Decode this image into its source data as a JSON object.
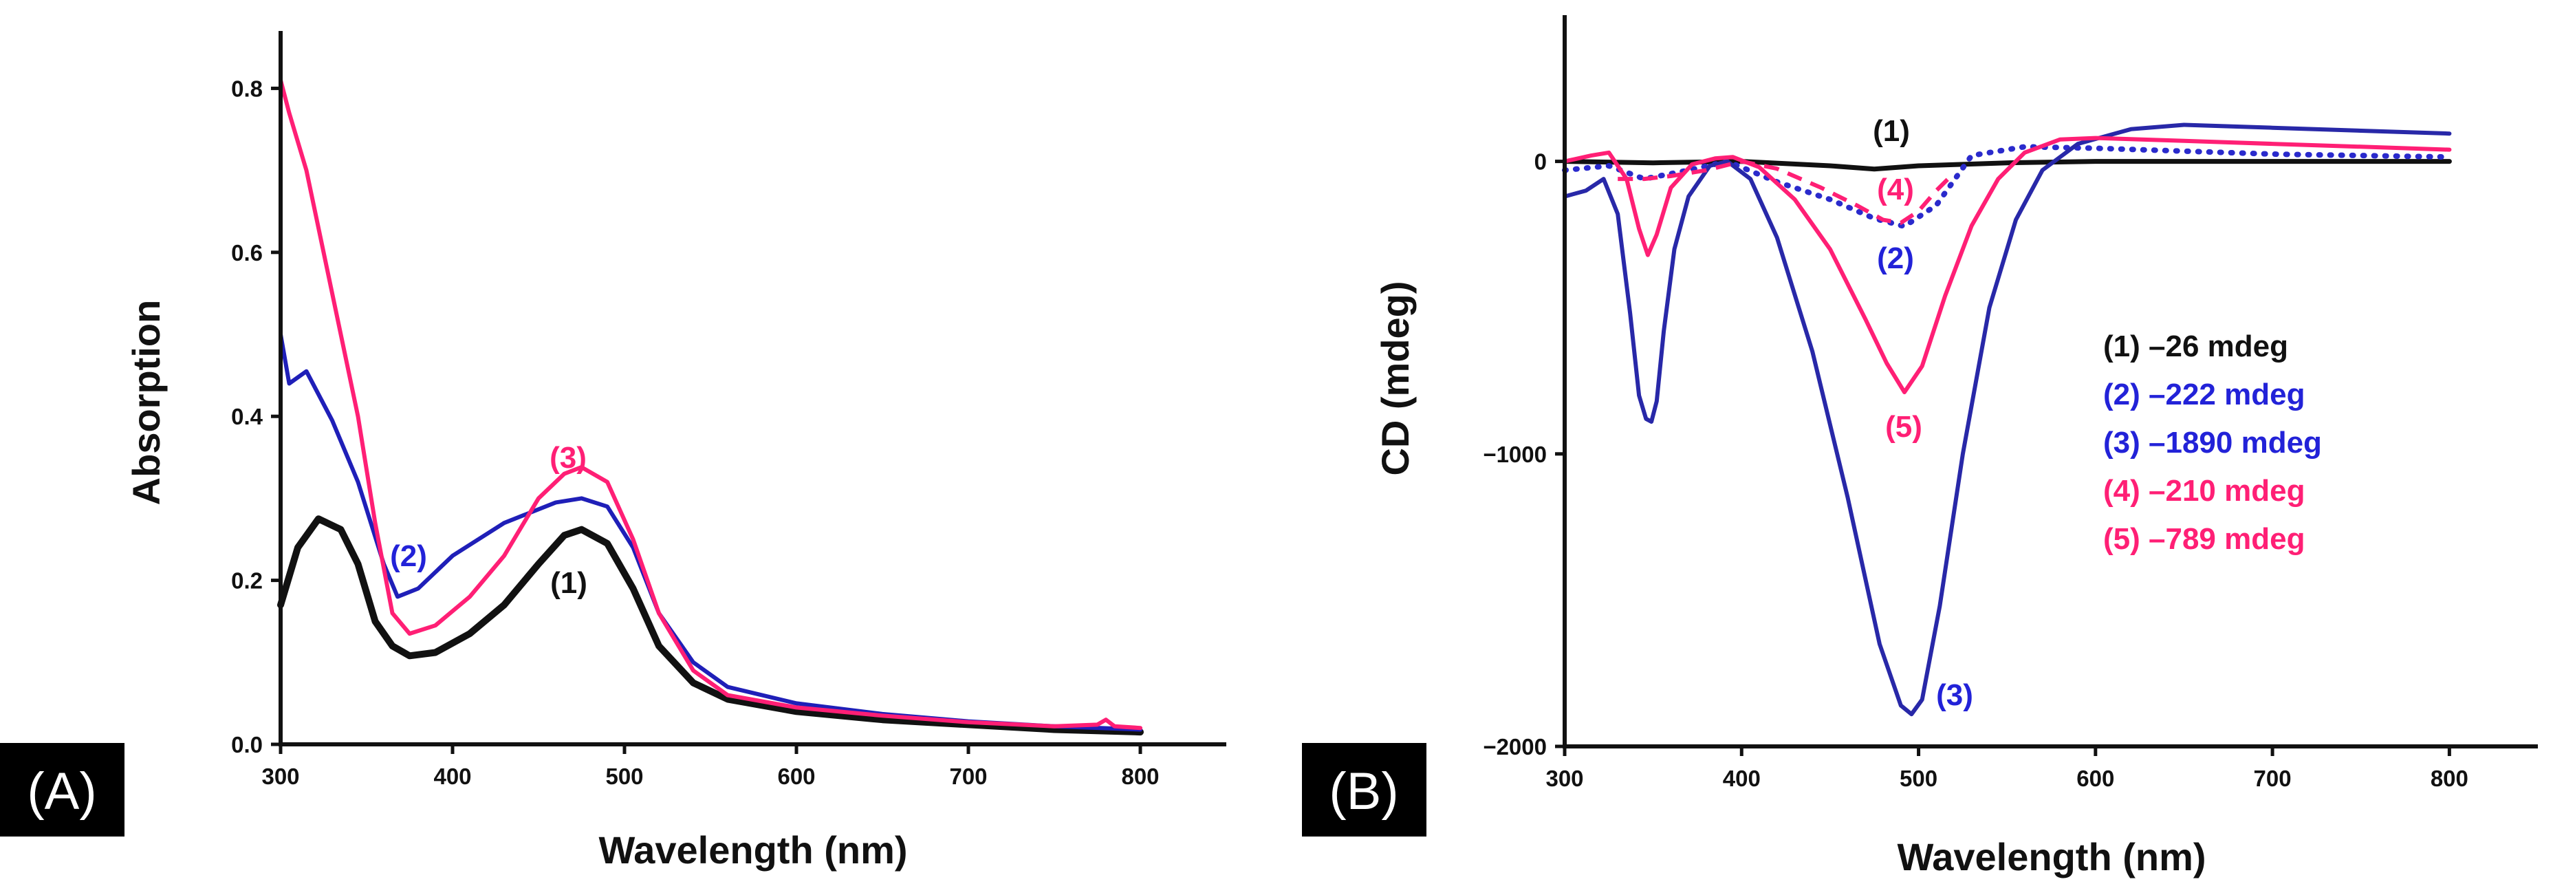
{
  "chart_data": [
    {
      "type": "line",
      "panel": "A",
      "xlabel": "Wavelength (nm)",
      "ylabel": "Absorption",
      "xlim": [
        300,
        850
      ],
      "ylim": [
        0,
        0.87
      ],
      "xticks": [
        300,
        400,
        500,
        600,
        700,
        800
      ],
      "yticks": [
        0.0,
        0.2,
        0.4,
        0.6,
        0.8
      ],
      "series": [
        {
          "name": "(1)",
          "color": "#111111",
          "style": "solid",
          "width": 10,
          "x": [
            300,
            310,
            322,
            335,
            345,
            355,
            365,
            375,
            390,
            410,
            430,
            450,
            465,
            475,
            490,
            505,
            520,
            540,
            560,
            600,
            650,
            700,
            750,
            800
          ],
          "y": [
            0.17,
            0.24,
            0.275,
            0.262,
            0.22,
            0.15,
            0.12,
            0.108,
            0.112,
            0.135,
            0.17,
            0.22,
            0.255,
            0.262,
            0.245,
            0.19,
            0.12,
            0.075,
            0.055,
            0.04,
            0.03,
            0.024,
            0.018,
            0.015
          ]
        },
        {
          "name": "(2)",
          "color": "#1f1fb8",
          "style": "solid",
          "width": 6,
          "x": [
            300,
            305,
            315,
            330,
            345,
            360,
            368,
            380,
            400,
            430,
            460,
            475,
            490,
            505,
            520,
            540,
            560,
            600,
            650,
            700,
            750,
            800
          ],
          "y": [
            0.5,
            0.44,
            0.455,
            0.395,
            0.32,
            0.22,
            0.18,
            0.19,
            0.23,
            0.27,
            0.295,
            0.3,
            0.29,
            0.24,
            0.16,
            0.1,
            0.07,
            0.05,
            0.037,
            0.028,
            0.022,
            0.018
          ]
        },
        {
          "name": "(3)",
          "color": "#ff1f75",
          "style": "solid",
          "width": 6,
          "x": [
            300,
            305,
            315,
            325,
            335,
            345,
            355,
            365,
            375,
            390,
            410,
            430,
            450,
            465,
            475,
            490,
            505,
            520,
            540,
            560,
            600,
            650,
            700,
            750,
            775,
            780,
            785,
            800
          ],
          "y": [
            0.81,
            0.77,
            0.7,
            0.6,
            0.5,
            0.4,
            0.27,
            0.16,
            0.135,
            0.145,
            0.18,
            0.23,
            0.3,
            0.33,
            0.338,
            0.32,
            0.25,
            0.16,
            0.09,
            0.06,
            0.045,
            0.035,
            0.027,
            0.022,
            0.024,
            0.03,
            0.022,
            0.02
          ]
        }
      ],
      "annotations": [
        "(1)",
        "(2)",
        "(3)"
      ],
      "panel_tag": "(A)"
    },
    {
      "type": "line",
      "panel": "B",
      "xlabel": "Wavelength (nm)",
      "ylabel": "CD (mdeg)",
      "xlim": [
        300,
        850
      ],
      "ylim": [
        -2000,
        500
      ],
      "xticks": [
        300,
        400,
        500,
        600,
        700,
        800
      ],
      "yticks": [
        0,
        -1000,
        -2000
      ],
      "series": [
        {
          "name": "(1)",
          "color": "#111111",
          "style": "solid",
          "width": 7,
          "x": [
            300,
            350,
            400,
            450,
            475,
            500,
            550,
            600,
            700,
            800
          ],
          "y": [
            0,
            -5,
            0,
            -15,
            -26,
            -15,
            -5,
            0,
            0,
            0
          ]
        },
        {
          "name": "(2)",
          "color": "#2a2acc",
          "style": "dotted",
          "width": 8,
          "x": [
            300,
            325,
            345,
            370,
            392,
            420,
            450,
            475,
            492,
            510,
            530,
            560,
            600,
            650,
            700,
            800
          ],
          "y": [
            -30,
            -15,
            -60,
            -30,
            0,
            -70,
            -130,
            -195,
            -222,
            -150,
            20,
            50,
            45,
            35,
            25,
            15
          ]
        },
        {
          "name": "(3)",
          "color": "#2828a8",
          "style": "solid",
          "width": 6,
          "x": [
            300,
            312,
            322,
            330,
            337,
            342,
            346,
            349,
            352,
            356,
            362,
            370,
            382,
            392,
            405,
            420,
            440,
            460,
            478,
            490,
            496,
            502,
            512,
            525,
            540,
            555,
            570,
            590,
            620,
            650,
            700,
            750,
            800
          ],
          "y": [
            -120,
            -100,
            -60,
            -180,
            -520,
            -800,
            -880,
            -890,
            -820,
            -580,
            -300,
            -120,
            -15,
            0,
            -60,
            -260,
            -650,
            -1150,
            -1650,
            -1860,
            -1890,
            -1840,
            -1520,
            -1000,
            -500,
            -200,
            -30,
            60,
            110,
            125,
            115,
            105,
            95
          ]
        },
        {
          "name": "(4)",
          "color": "#ff1f75",
          "style": "dashed",
          "width": 6,
          "x": [
            330,
            345,
            360,
            380,
            400,
            420,
            445,
            465,
            480,
            490,
            500,
            510,
            520
          ],
          "y": [
            -60,
            -60,
            -50,
            -30,
            0,
            -25,
            -90,
            -150,
            -200,
            -210,
            -170,
            -100,
            -40
          ]
        },
        {
          "name": "(5)",
          "color": "#ff1f75",
          "style": "solid",
          "width": 6,
          "x": [
            300,
            315,
            325,
            335,
            342,
            347,
            352,
            360,
            372,
            385,
            395,
            410,
            430,
            450,
            470,
            482,
            492,
            502,
            515,
            530,
            545,
            560,
            580,
            600,
            650,
            700,
            750,
            800
          ],
          "y": [
            0,
            20,
            30,
            -60,
            -230,
            -320,
            -250,
            -90,
            -10,
            10,
            15,
            -20,
            -130,
            -300,
            -540,
            -690,
            -789,
            -700,
            -460,
            -220,
            -60,
            30,
            75,
            80,
            70,
            60,
            50,
            40
          ]
        }
      ],
      "annotations": [
        "(1)",
        "(2)",
        "(3)",
        "(4)",
        "(5)"
      ],
      "legend": [
        {
          "text": "(1) –26 mdeg",
          "color": "#111111"
        },
        {
          "text": "(2) –222 mdeg",
          "color": "#2222d8"
        },
        {
          "text": "(3) –1890 mdeg",
          "color": "#2222d8"
        },
        {
          "text": "(4) –210 mdeg",
          "color": "#ff1f75"
        },
        {
          "text": "(5) –789 mdeg",
          "color": "#ff1f75"
        }
      ],
      "panel_tag": "(B)"
    }
  ]
}
